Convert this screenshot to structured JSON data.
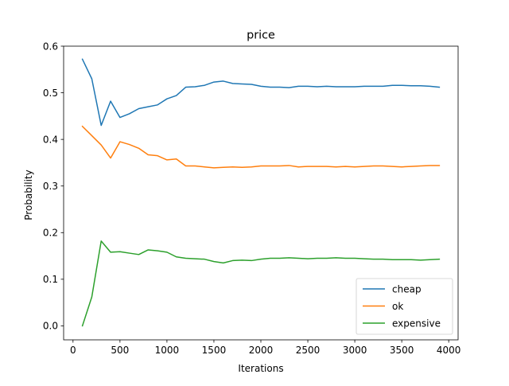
{
  "chart_data": {
    "type": "line",
    "title": "price",
    "xlabel": "Iterations",
    "ylabel": "Probability",
    "xlim": [
      -100,
      4100
    ],
    "ylim": [
      -0.03,
      0.6
    ],
    "xticks": [
      0,
      500,
      1000,
      1500,
      2000,
      2500,
      3000,
      3500,
      4000
    ],
    "yticks": [
      0.0,
      0.1,
      0.2,
      0.3,
      0.4,
      0.5,
      0.6
    ],
    "xtick_labels": [
      "0",
      "500",
      "1000",
      "1500",
      "2000",
      "2500",
      "3000",
      "3500",
      "4000"
    ],
    "ytick_labels": [
      "0.0",
      "0.1",
      "0.2",
      "0.3",
      "0.4",
      "0.5",
      "0.6"
    ],
    "grid": false,
    "legend_position": "bottom-right",
    "x": [
      100,
      200,
      300,
      400,
      500,
      600,
      700,
      800,
      900,
      1000,
      1100,
      1200,
      1300,
      1400,
      1500,
      1600,
      1700,
      1800,
      1900,
      2000,
      2100,
      2200,
      2300,
      2400,
      2500,
      2600,
      2700,
      2800,
      2900,
      3000,
      3100,
      3200,
      3300,
      3400,
      3500,
      3600,
      3700,
      3800,
      3900
    ],
    "series": [
      {
        "name": "cheap",
        "color": "#1f77b4",
        "values": [
          0.572,
          0.53,
          0.43,
          0.482,
          0.447,
          0.455,
          0.466,
          0.47,
          0.474,
          0.487,
          0.494,
          0.512,
          0.513,
          0.516,
          0.523,
          0.525,
          0.52,
          0.519,
          0.518,
          0.514,
          0.512,
          0.512,
          0.511,
          0.514,
          0.514,
          0.513,
          0.514,
          0.513,
          0.513,
          0.513,
          0.514,
          0.514,
          0.514,
          0.516,
          0.516,
          0.515,
          0.515,
          0.514,
          0.512
        ]
      },
      {
        "name": "ok",
        "color": "#ff7f0e",
        "values": [
          0.428,
          0.408,
          0.388,
          0.36,
          0.395,
          0.389,
          0.381,
          0.367,
          0.365,
          0.356,
          0.358,
          0.343,
          0.343,
          0.341,
          0.339,
          0.34,
          0.341,
          0.34,
          0.341,
          0.343,
          0.343,
          0.343,
          0.344,
          0.341,
          0.342,
          0.342,
          0.342,
          0.341,
          0.342,
          0.341,
          0.342,
          0.343,
          0.343,
          0.342,
          0.341,
          0.342,
          0.343,
          0.344,
          0.344
        ]
      },
      {
        "name": "expensive",
        "color": "#2ca02c",
        "values": [
          0.0,
          0.062,
          0.182,
          0.158,
          0.159,
          0.156,
          0.153,
          0.163,
          0.161,
          0.158,
          0.148,
          0.145,
          0.144,
          0.143,
          0.138,
          0.135,
          0.14,
          0.141,
          0.14,
          0.143,
          0.145,
          0.145,
          0.146,
          0.145,
          0.144,
          0.145,
          0.145,
          0.146,
          0.145,
          0.145,
          0.144,
          0.143,
          0.143,
          0.142,
          0.142,
          0.142,
          0.141,
          0.142,
          0.143
        ]
      }
    ]
  }
}
